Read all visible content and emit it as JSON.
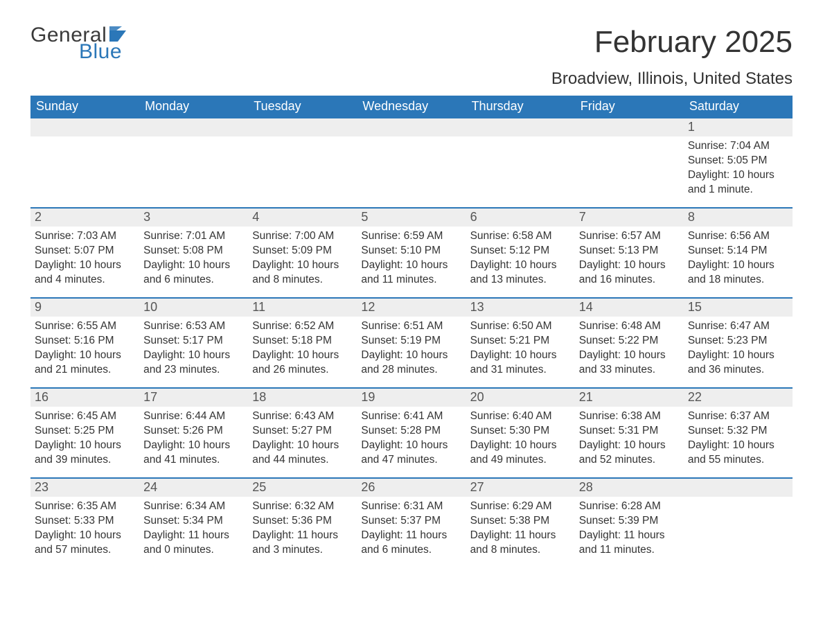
{
  "logo": {
    "word1": "General",
    "word2": "Blue",
    "flag_color": "#2b77b8",
    "text_dark": "#3a3a3a"
  },
  "title": "February 2025",
  "location": "Broadview, Illinois, United States",
  "colors": {
    "header_bg": "#2b77b8",
    "header_text": "#ffffff",
    "row_border": "#2b77b8",
    "daynum_bg": "#eeeeee",
    "daynum_text": "#555555",
    "body_text": "#333333",
    "page_bg": "#ffffff"
  },
  "typography": {
    "title_fontsize": 44,
    "location_fontsize": 24,
    "dayheader_fontsize": 18,
    "daynum_fontsize": 18,
    "body_fontsize": 15.5
  },
  "day_names": [
    "Sunday",
    "Monday",
    "Tuesday",
    "Wednesday",
    "Thursday",
    "Friday",
    "Saturday"
  ],
  "labels": {
    "sunrise": "Sunrise",
    "sunset": "Sunset",
    "daylight": "Daylight"
  },
  "grid": {
    "rows": 5,
    "cols": 7,
    "first_day_column": 6,
    "last_day": 28
  },
  "days": [
    {
      "n": 1,
      "sunrise": "7:04 AM",
      "sunset": "5:05 PM",
      "daylight": "10 hours and 1 minute."
    },
    {
      "n": 2,
      "sunrise": "7:03 AM",
      "sunset": "5:07 PM",
      "daylight": "10 hours and 4 minutes."
    },
    {
      "n": 3,
      "sunrise": "7:01 AM",
      "sunset": "5:08 PM",
      "daylight": "10 hours and 6 minutes."
    },
    {
      "n": 4,
      "sunrise": "7:00 AM",
      "sunset": "5:09 PM",
      "daylight": "10 hours and 8 minutes."
    },
    {
      "n": 5,
      "sunrise": "6:59 AM",
      "sunset": "5:10 PM",
      "daylight": "10 hours and 11 minutes."
    },
    {
      "n": 6,
      "sunrise": "6:58 AM",
      "sunset": "5:12 PM",
      "daylight": "10 hours and 13 minutes."
    },
    {
      "n": 7,
      "sunrise": "6:57 AM",
      "sunset": "5:13 PM",
      "daylight": "10 hours and 16 minutes."
    },
    {
      "n": 8,
      "sunrise": "6:56 AM",
      "sunset": "5:14 PM",
      "daylight": "10 hours and 18 minutes."
    },
    {
      "n": 9,
      "sunrise": "6:55 AM",
      "sunset": "5:16 PM",
      "daylight": "10 hours and 21 minutes."
    },
    {
      "n": 10,
      "sunrise": "6:53 AM",
      "sunset": "5:17 PM",
      "daylight": "10 hours and 23 minutes."
    },
    {
      "n": 11,
      "sunrise": "6:52 AM",
      "sunset": "5:18 PM",
      "daylight": "10 hours and 26 minutes."
    },
    {
      "n": 12,
      "sunrise": "6:51 AM",
      "sunset": "5:19 PM",
      "daylight": "10 hours and 28 minutes."
    },
    {
      "n": 13,
      "sunrise": "6:50 AM",
      "sunset": "5:21 PM",
      "daylight": "10 hours and 31 minutes."
    },
    {
      "n": 14,
      "sunrise": "6:48 AM",
      "sunset": "5:22 PM",
      "daylight": "10 hours and 33 minutes."
    },
    {
      "n": 15,
      "sunrise": "6:47 AM",
      "sunset": "5:23 PM",
      "daylight": "10 hours and 36 minutes."
    },
    {
      "n": 16,
      "sunrise": "6:45 AM",
      "sunset": "5:25 PM",
      "daylight": "10 hours and 39 minutes."
    },
    {
      "n": 17,
      "sunrise": "6:44 AM",
      "sunset": "5:26 PM",
      "daylight": "10 hours and 41 minutes."
    },
    {
      "n": 18,
      "sunrise": "6:43 AM",
      "sunset": "5:27 PM",
      "daylight": "10 hours and 44 minutes."
    },
    {
      "n": 19,
      "sunrise": "6:41 AM",
      "sunset": "5:28 PM",
      "daylight": "10 hours and 47 minutes."
    },
    {
      "n": 20,
      "sunrise": "6:40 AM",
      "sunset": "5:30 PM",
      "daylight": "10 hours and 49 minutes."
    },
    {
      "n": 21,
      "sunrise": "6:38 AM",
      "sunset": "5:31 PM",
      "daylight": "10 hours and 52 minutes."
    },
    {
      "n": 22,
      "sunrise": "6:37 AM",
      "sunset": "5:32 PM",
      "daylight": "10 hours and 55 minutes."
    },
    {
      "n": 23,
      "sunrise": "6:35 AM",
      "sunset": "5:33 PM",
      "daylight": "10 hours and 57 minutes."
    },
    {
      "n": 24,
      "sunrise": "6:34 AM",
      "sunset": "5:34 PM",
      "daylight": "11 hours and 0 minutes."
    },
    {
      "n": 25,
      "sunrise": "6:32 AM",
      "sunset": "5:36 PM",
      "daylight": "11 hours and 3 minutes."
    },
    {
      "n": 26,
      "sunrise": "6:31 AM",
      "sunset": "5:37 PM",
      "daylight": "11 hours and 6 minutes."
    },
    {
      "n": 27,
      "sunrise": "6:29 AM",
      "sunset": "5:38 PM",
      "daylight": "11 hours and 8 minutes."
    },
    {
      "n": 28,
      "sunrise": "6:28 AM",
      "sunset": "5:39 PM",
      "daylight": "11 hours and 11 minutes."
    }
  ]
}
